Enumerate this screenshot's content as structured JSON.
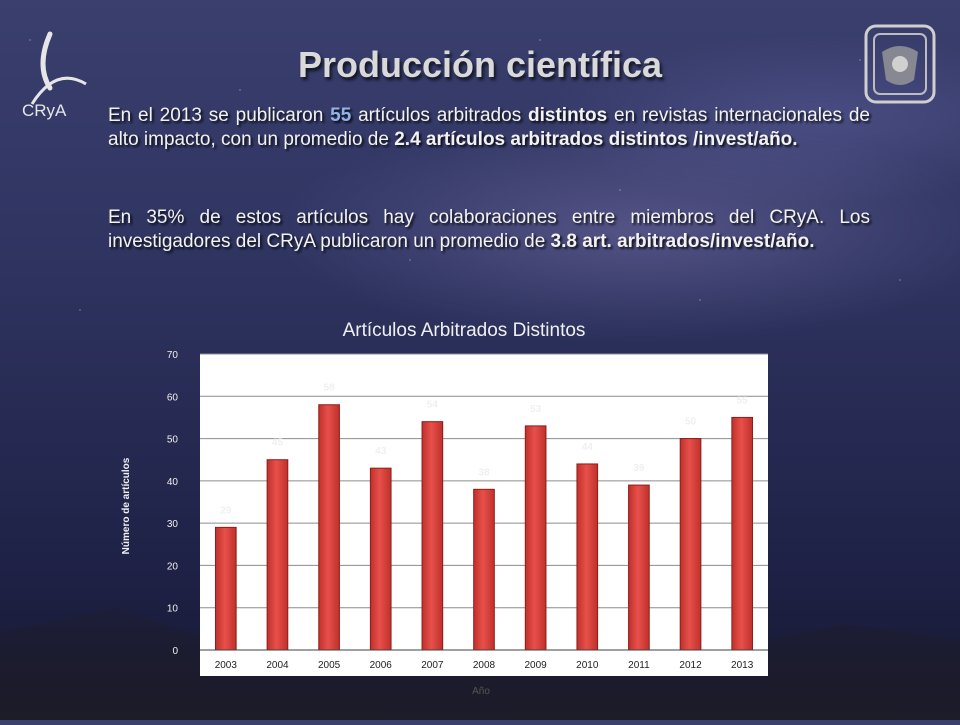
{
  "slide": {
    "title": "Producción científica",
    "logo_left_text": "CRyA",
    "paragraph1": {
      "t1": "En el 2013 se publicaron ",
      "count": "55",
      "t2": " artículos arbitrados ",
      "bold1": "distintos",
      "t3": " en revistas internacionales de alto impacto,  con un promedio de  ",
      "bold2": "2.4 artículos arbitrados distintos /invest/año."
    },
    "paragraph2": {
      "t1": "En 35% de estos artículos hay colaboraciones entre miembros del CRyA. Los investigadores del CRyA publicaron un promedio de  ",
      "bold1": "3.8 art. arbitrados/invest/año."
    }
  },
  "colors": {
    "bar_fill": "#c0302b",
    "bar_highlight": "#e8504a",
    "plot_bg": "#ffffff",
    "grid": "#8c8c8c"
  },
  "chart_data": {
    "type": "bar",
    "title": "Artículos Arbitrados Distintos",
    "xlabel": "Año",
    "ylabel": "Número de artículos",
    "categories": [
      "2003",
      "2004",
      "2005",
      "2006",
      "2007",
      "2008",
      "2009",
      "2010",
      "2011",
      "2012",
      "2013"
    ],
    "values": [
      29,
      45,
      58,
      43,
      54,
      38,
      53,
      44,
      39,
      50,
      55
    ],
    "ylim": [
      0,
      70
    ],
    "yticks": [
      0,
      10,
      20,
      30,
      40,
      50,
      60,
      70
    ],
    "grid": true,
    "data_labels": true
  }
}
